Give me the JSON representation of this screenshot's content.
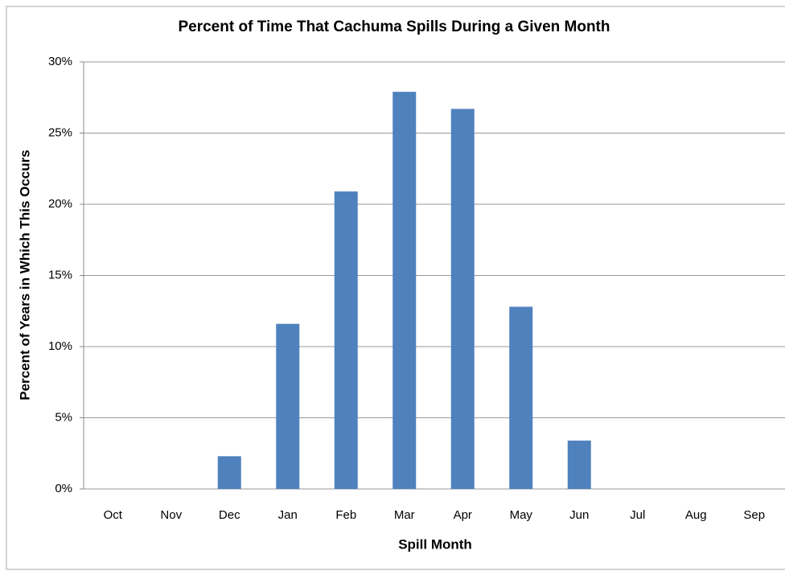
{
  "chart_data": {
    "type": "bar",
    "title": "Percent of Time That Cachuma Spills During a Given Month",
    "x_label": "Spill Month",
    "y_label": "Percent of Years in Which This Occurs",
    "categories": [
      "Oct",
      "Nov",
      "Dec",
      "Jan",
      "Feb",
      "Mar",
      "Apr",
      "May",
      "Jun",
      "Jul",
      "Aug",
      "Sep"
    ],
    "values": [
      0,
      0,
      2.3,
      11.6,
      20.9,
      27.9,
      26.7,
      12.8,
      3.4,
      0,
      0,
      0
    ],
    "color": "#4f81bd",
    "ylim": [
      0,
      30
    ],
    "yticks": [
      {
        "value": 0,
        "label": "0%"
      },
      {
        "value": 5,
        "label": "5%"
      },
      {
        "value": 10,
        "label": "10%"
      },
      {
        "value": 15,
        "label": "15%"
      },
      {
        "value": 20,
        "label": "20%"
      },
      {
        "value": 25,
        "label": "25%"
      },
      {
        "value": 30,
        "label": "30%"
      }
    ],
    "grid": true
  }
}
